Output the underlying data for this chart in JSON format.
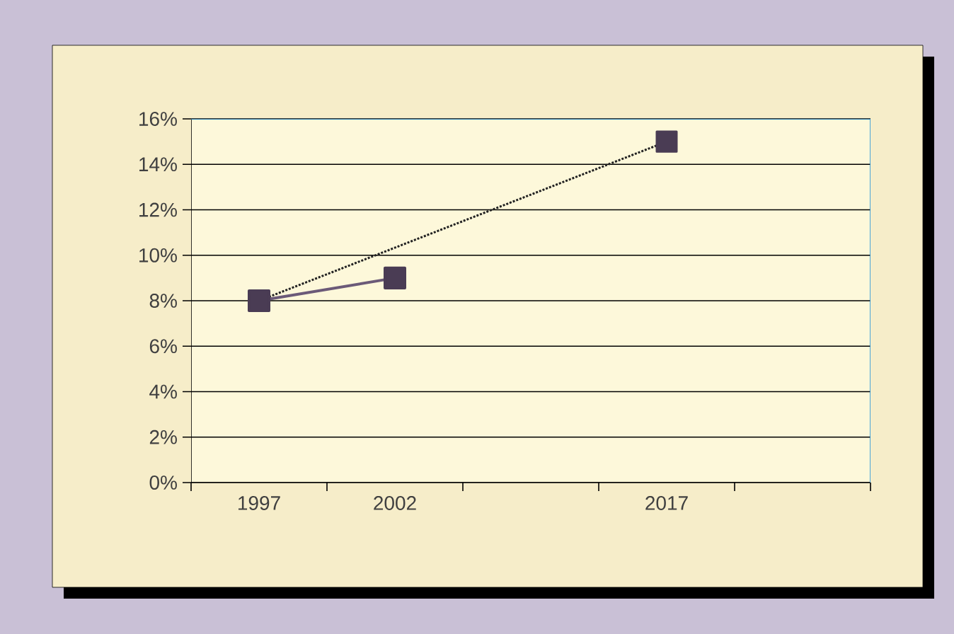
{
  "chart_data": {
    "type": "line",
    "categories": [
      "1997",
      "2002",
      null,
      "2017",
      null
    ],
    "series": [
      {
        "color": "#6b5a78",
        "values": [
          8,
          9,
          null,
          null,
          null
        ],
        "line_style": "solid"
      },
      {
        "color": "#222222",
        "values": [
          8,
          null,
          null,
          15,
          null
        ],
        "line_style": "dotted"
      }
    ],
    "ylim": [
      0,
      16
    ],
    "yticks": [
      {
        "value": 0,
        "label": "0%"
      },
      {
        "value": 2,
        "label": "2%"
      },
      {
        "value": 4,
        "label": "4%"
      },
      {
        "value": 6,
        "label": "6%"
      },
      {
        "value": 8,
        "label": "8%"
      },
      {
        "value": 10,
        "label": "10%"
      },
      {
        "value": 12,
        "label": "12%"
      },
      {
        "value": 14,
        "label": "14%"
      },
      {
        "value": 16,
        "label": "16%"
      }
    ],
    "grid": "y",
    "marker": "square"
  }
}
